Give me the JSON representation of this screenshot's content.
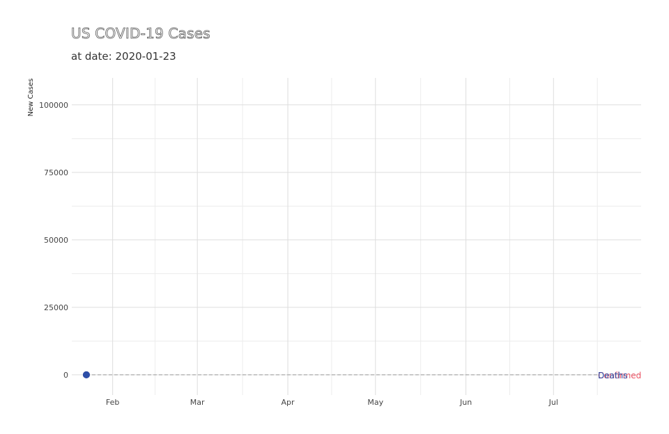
{
  "title": "US COVID-19 Cases",
  "subtitle": "at date: 2020-01-23",
  "chart_data": {
    "type": "line",
    "title": "US COVID-19 Cases",
    "subtitle": "at date: 2020-01-23",
    "xlabel": "",
    "ylabel": "New Cases",
    "x_ticks": [
      "Feb",
      "Mar",
      "Apr",
      "May",
      "Jun",
      "Jul"
    ],
    "x_tick_dates": [
      "2020-02-01",
      "2020-03-01",
      "2020-04-01",
      "2020-05-01",
      "2020-06-01",
      "2020-07-01"
    ],
    "xlim": [
      "2020-01-18",
      "2020-07-31"
    ],
    "y_ticks": [
      0,
      25000,
      50000,
      75000,
      100000
    ],
    "ylim": [
      -7500,
      110000
    ],
    "grid": true,
    "series": [
      {
        "name": "Confirmed",
        "color": "#ee5566",
        "points": [
          {
            "x": "2020-01-23",
            "y": 0
          }
        ]
      },
      {
        "name": "Deaths",
        "color": "#2d4fa8",
        "points": [
          {
            "x": "2020-01-23",
            "y": 0
          }
        ]
      }
    ],
    "series_colors": [
      "#ee5566",
      "#2d4fa8",
      "#8a8fd8"
    ],
    "reference_line": {
      "y": 0,
      "style": "dashed",
      "color": "#aaaaaa"
    }
  }
}
